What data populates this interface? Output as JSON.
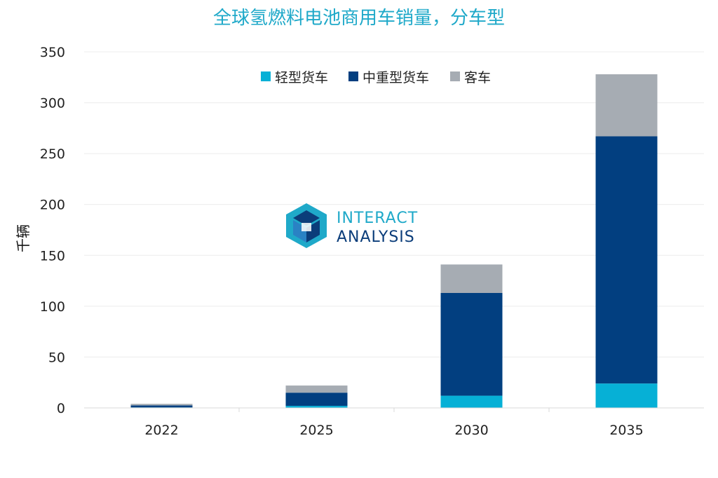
{
  "chart_data": {
    "type": "bar",
    "stacked": true,
    "title": "全球氢燃料电池商用车销量，分车型",
    "ylabel": "千辆",
    "xlabel": "",
    "categories": [
      "2022",
      "2025",
      "2030",
      "2035"
    ],
    "ylim": [
      0,
      350
    ],
    "yticks": [
      0,
      50,
      100,
      150,
      200,
      250,
      300,
      350
    ],
    "grid": true,
    "legend_position": "top-center",
    "series": [
      {
        "name": "轻型货车",
        "color": "#06b0d6",
        "values": [
          0.5,
          2,
          12,
          24
        ]
      },
      {
        "name": "中重型货车",
        "color": "#023f80",
        "values": [
          2,
          13,
          101,
          243
        ]
      },
      {
        "name": "客车",
        "color": "#a6acb3",
        "values": [
          1.5,
          7,
          28,
          61
        ]
      }
    ]
  },
  "watermark": {
    "line1": "INTERACT",
    "line2": "ANALYSIS",
    "colors": {
      "light": "#1fa9c9",
      "dark": "#0b3d7a",
      "mid": "#2a82c4"
    }
  }
}
